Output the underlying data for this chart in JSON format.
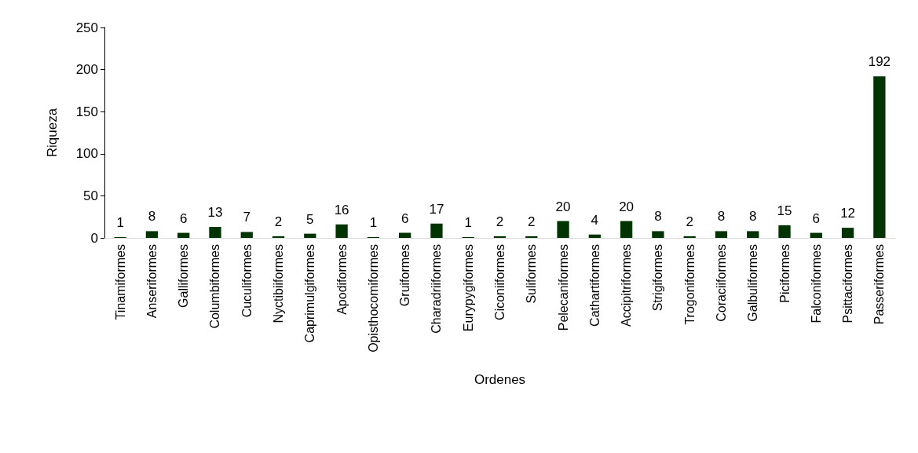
{
  "chart_data": {
    "type": "bar",
    "xlabel": "Ordenes",
    "ylabel": "Riqueza",
    "categories": [
      "Tinamiformes",
      "Anseriformes",
      "Galliformes",
      "Columbiformes",
      "Cuculiformes",
      "Nyctibiiformes",
      "Caprimulgiformes",
      "Apodiformes",
      "Opisthocomiformes",
      "Gruiformes",
      "Charadriiformes",
      "Eurypygiformes",
      "Ciconiiformes",
      "Suliformes",
      "Pelecaniformes",
      "Cathartiformes",
      "Accipitriformes",
      "Strigiformes",
      "Trogoniformes",
      "Coraciiformes",
      "Galbuliformes",
      "Piciformes",
      "Falconiformes",
      "Psittaciformes",
      "Passeriformes"
    ],
    "values": [
      1,
      8,
      6,
      13,
      7,
      2,
      5,
      16,
      1,
      6,
      17,
      1,
      2,
      2,
      20,
      4,
      20,
      8,
      2,
      8,
      8,
      15,
      6,
      12,
      192
    ],
    "color": "#003300",
    "ylim": [
      0,
      250
    ],
    "yticks": [
      0,
      50,
      100,
      150,
      200,
      250
    ],
    "grid": false,
    "data_labels": true
  }
}
